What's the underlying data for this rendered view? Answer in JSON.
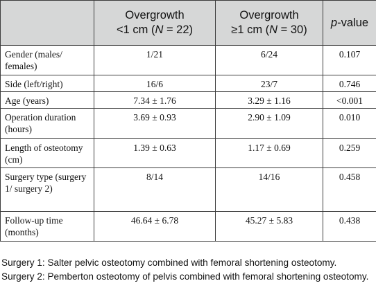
{
  "table": {
    "headers": [
      {
        "line1": "Overgrowth",
        "line2_prefix": "<1 cm (",
        "n_var": "N",
        "line2_suffix": " = 22)"
      },
      {
        "line1": "Overgrowth",
        "line2_prefix": "≥1 cm (",
        "n_var": "N",
        "line2_suffix": " = 30)"
      },
      {
        "p_var": "p",
        "p_suffix": "-value"
      }
    ],
    "rows": [
      {
        "label": "Gender (males/ females)",
        "a": "1/21",
        "b": "6/24",
        "p": "0.107"
      },
      {
        "label": "Side (left/right)",
        "a": "16/6",
        "b": "23/7",
        "p": "0.746"
      },
      {
        "label": "Age (years)",
        "a": "7.34 ± 1.76",
        "b": "3.29 ± 1.16",
        "p": "<0.001"
      },
      {
        "label": "Operation duration (hours)",
        "a": "3.69 ± 0.93",
        "b": "2.90 ± 1.09",
        "p": "0.010"
      },
      {
        "label": "Length of osteotomy (cm)",
        "a": "1.39 ± 0.63",
        "b": "1.17 ± 0.69",
        "p": "0.259"
      },
      {
        "label": "Surgery type (surgery 1/ surgery 2)",
        "a": "8/14",
        "b": "14/16",
        "p": "0.458"
      },
      {
        "label": "Follow-up time (months)",
        "a": "46.64 ± 6.78",
        "b": "45.27 ± 5.83",
        "p": "0.438"
      }
    ]
  },
  "footnotes": [
    "Surgery 1: Salter pelvic osteotomy combined with femoral shortening osteotomy.",
    "Surgery 2: Pemberton osteotomy of pelvis combined with femoral shortening osteotomy."
  ]
}
